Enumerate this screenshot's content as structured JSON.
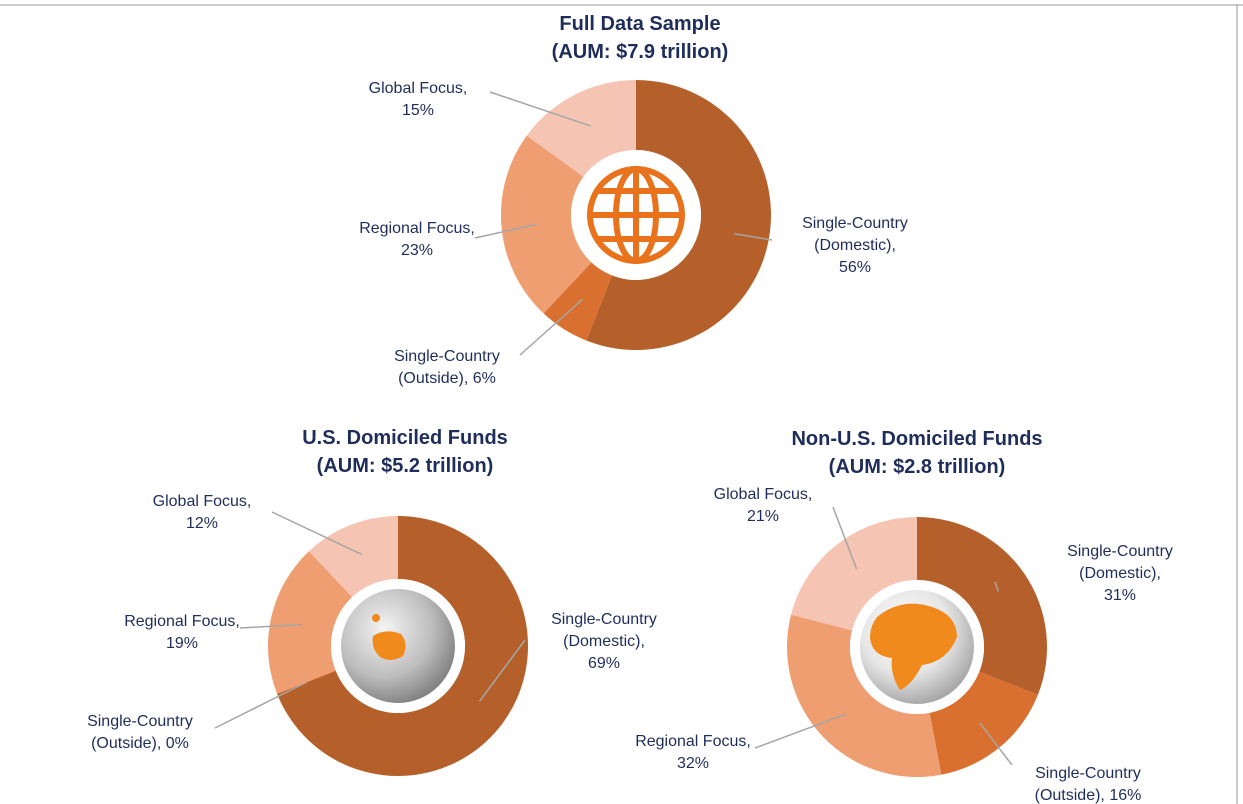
{
  "chart_data": [
    {
      "type": "donut",
      "title": "Full Data Sample",
      "subtitle": "(AUM: $7.9 trillion)",
      "categories": [
        "Single-Country (Domestic),",
        "Single-Country (Outside),",
        "Regional Focus,",
        "Global Focus,"
      ],
      "values": [
        56,
        6,
        23,
        15
      ],
      "value_labels": [
        "56%",
        "6%",
        "23%",
        "15%"
      ],
      "colors": [
        "#b5602a",
        "#d9702f",
        "#ef9e72",
        "#f5c4b2"
      ]
    },
    {
      "type": "donut",
      "title": "U.S. Domiciled Funds",
      "subtitle": "(AUM:  $5.2 trillion)",
      "categories": [
        "Single-Country (Domestic),",
        "Single-Country (Outside),",
        "Regional Focus,",
        "Global Focus,"
      ],
      "values": [
        69,
        0,
        19,
        12
      ],
      "value_labels": [
        "69%",
        "0%",
        "19%",
        "12%"
      ],
      "colors": [
        "#b5602a",
        "#d9702f",
        "#ef9e72",
        "#f5c4b2"
      ]
    },
    {
      "type": "donut",
      "title": "Non-U.S. Domiciled Funds",
      "subtitle": "(AUM: $2.8 trillion)",
      "categories": [
        "Single-Country (Domestic),",
        "Single-Country (Outside),",
        "Regional Focus,",
        "Global Focus,"
      ],
      "values": [
        31,
        16,
        32,
        21
      ],
      "value_labels": [
        "31%",
        "16%",
        "32%",
        "21%"
      ],
      "colors": [
        "#b5602a",
        "#d9702f",
        "#ef9e72",
        "#f5c4b2"
      ]
    }
  ]
}
